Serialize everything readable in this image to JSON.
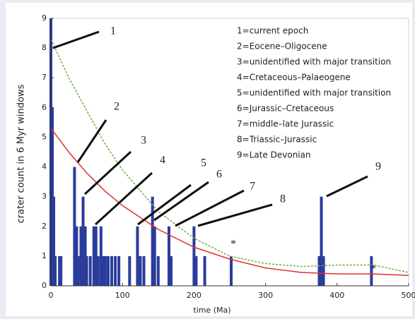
{
  "chart_data": {
    "type": "bar",
    "xlabel": "time (Ma)",
    "ylabel": "crater count in 6 Myr windows",
    "xlim": [
      0,
      500
    ],
    "xticks": [
      0,
      100,
      200,
      300,
      400,
      500
    ],
    "ylim": [
      0,
      9
    ],
    "yticks": [
      0,
      1,
      2,
      3,
      4,
      5,
      6,
      7,
      8,
      9
    ],
    "color": "#2a3c9c",
    "x": [
      0,
      2,
      4,
      6,
      12,
      14,
      33,
      36,
      38,
      42,
      45,
      48,
      50,
      55,
      60,
      63,
      66,
      70,
      73,
      76,
      80,
      85,
      90,
      95,
      110,
      121,
      125,
      130,
      142,
      145,
      150,
      165,
      168,
      200,
      203,
      215,
      252,
      375,
      378,
      381,
      448
    ],
    "values": [
      9,
      6,
      3,
      1,
      1,
      1,
      4,
      2,
      1,
      2,
      3,
      2,
      1,
      1,
      2,
      2,
      1,
      2,
      1,
      1,
      1,
      1,
      1,
      1,
      1,
      2,
      1,
      1,
      3,
      2,
      1,
      2,
      1,
      2,
      1,
      1,
      1,
      1,
      3,
      1,
      1
    ],
    "curve_x": [
      0,
      25,
      50,
      75,
      100,
      150,
      200,
      250,
      300,
      350,
      400,
      450,
      500
    ],
    "curves": [
      {
        "color": "#e0302c",
        "values": [
          5.3,
          4.5,
          3.8,
          3.2,
          2.7,
          1.9,
          1.3,
          0.9,
          0.6,
          0.45,
          0.4,
          0.4,
          0.35
        ]
      },
      {
        "color": "#6caf48",
        "values": [
          8.3,
          7.0,
          5.9,
          4.8,
          3.9,
          2.5,
          1.6,
          1.0,
          0.75,
          0.65,
          0.7,
          0.7,
          0.45
        ]
      }
    ],
    "annotations": [
      "1",
      "2",
      "3",
      "4",
      "5",
      "6",
      "7",
      "8",
      "9",
      "*",
      "*"
    ],
    "legend": [
      "1=current epoch",
      "2=Eocene–Oligocene",
      "3=unidentified with major transition",
      "4=Cretaceous–Palaeogene",
      "5=unidentified with major transition",
      "6=Jurassic–Cretaceous",
      "7=middle–late Jurassic",
      "8=Triassic–Jurassic",
      "9=Late Devonian"
    ]
  }
}
